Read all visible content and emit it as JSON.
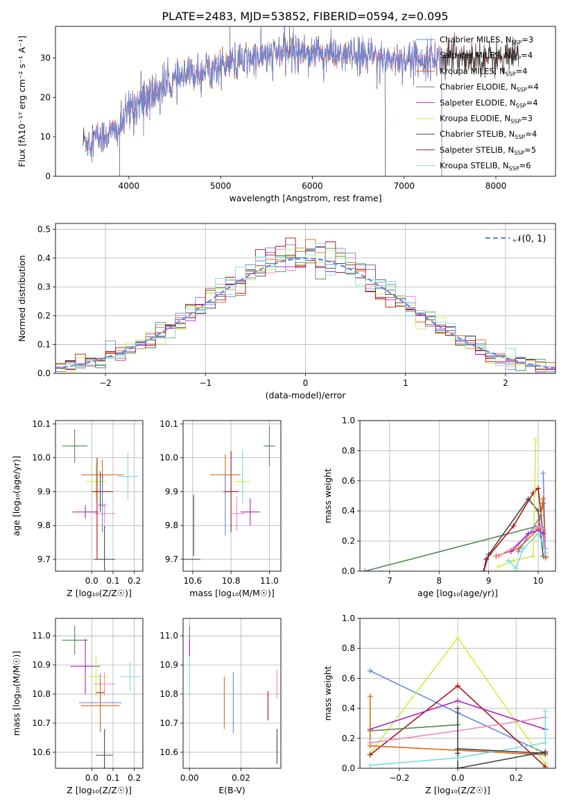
{
  "title": "PLATE=2483, MJD=53852, FIBERID=0594, z=0.095",
  "colors": {
    "Chabrier MILES": "#6688dd",
    "Salpeter MILES": "#ee88bb",
    "Kroupa MILES": "#dd6611",
    "Chabrier ELODIE": "#558855",
    "Salpeter ELODIE": "#aa22bb",
    "Kroupa ELODIE": "#ccee44",
    "Chabrier STELIB": "#444444",
    "Salpeter STELIB": "#aa1111",
    "Kroupa STELIB": "#77dddd",
    "gauss": "#6688dd"
  },
  "chart_data": [
    {
      "type": "line",
      "panel": "spectrum",
      "xlabel": "wavelength [Angstrom, rest frame]",
      "ylabel": "Flux [fλ10⁻¹⁷ erg cm⁻² s⁻¹ A⁻¹]",
      "xlim": [
        3200,
        8650
      ],
      "ylim": [
        0,
        38
      ],
      "xticks": [
        4000,
        5000,
        6000,
        7000,
        8000
      ],
      "yticks": [
        0,
        10,
        20,
        30
      ],
      "grid": false,
      "legend_position": "top-right",
      "continuum": [
        [
          3500,
          9
        ],
        [
          3700,
          10
        ],
        [
          3900,
          12
        ],
        [
          4000,
          17
        ],
        [
          4200,
          20
        ],
        [
          4400,
          23
        ],
        [
          4600,
          25
        ],
        [
          4800,
          27
        ],
        [
          5000,
          28
        ],
        [
          5200,
          29
        ],
        [
          5400,
          30
        ],
        [
          5600,
          31
        ],
        [
          5800,
          32
        ],
        [
          6000,
          31.5
        ],
        [
          6200,
          31
        ],
        [
          6400,
          30.5
        ],
        [
          6600,
          30.5
        ],
        [
          6800,
          30
        ],
        [
          7000,
          29.5
        ],
        [
          7200,
          30
        ],
        [
          7400,
          30
        ],
        [
          7600,
          30.5
        ],
        [
          7800,
          30
        ],
        [
          8000,
          30
        ],
        [
          8300,
          30
        ]
      ],
      "series": [
        {
          "name": "Chabrier MILES, N_SSP=3",
          "legend_label": "Chabrier MILES, N",
          "n_ssp": 3,
          "range": [
            3510,
            7410
          ]
        },
        {
          "name": "Salpeter MILES, N_SSP=4",
          "legend_label": "Salpeter MILES, N",
          "n_ssp": 4,
          "range": [
            3510,
            7410
          ]
        },
        {
          "name": "Kroupa MILES, N_SSP=4",
          "legend_label": "Kroupa MILES, N",
          "n_ssp": 4,
          "range": [
            3510,
            7410
          ]
        },
        {
          "name": "Chabrier ELODIE, N_SSP=4",
          "legend_label": "Chabrier ELODIE, N",
          "n_ssp": 4,
          "range": [
            3900,
            6795
          ]
        },
        {
          "name": "Salpeter ELODIE, N_SSP=4",
          "legend_label": "Salpeter ELODIE, N",
          "n_ssp": 4,
          "range": [
            3900,
            6795
          ]
        },
        {
          "name": "Kroupa ELODIE, N_SSP=3",
          "legend_label": "Kroupa ELODIE, N",
          "n_ssp": 3,
          "range": [
            3900,
            6795
          ]
        },
        {
          "name": "Chabrier STELIB, N_SSP=4",
          "legend_label": "Chabrier STELIB, N",
          "n_ssp": 4,
          "range": [
            3500,
            8250
          ]
        },
        {
          "name": "Salpeter STELIB, N_SSP=5",
          "legend_label": "Salpeter STELIB, N",
          "n_ssp": 5,
          "range": [
            3500,
            8250
          ]
        },
        {
          "name": "Kroupa STELIB, N_SSP=6",
          "legend_label": "Kroupa STELIB, N",
          "n_ssp": 6,
          "range": [
            3500,
            8250
          ]
        }
      ]
    },
    {
      "type": "line",
      "panel": "residual_histogram",
      "xlabel": "(data-model)/error",
      "ylabel": "Normed distribution",
      "xlim": [
        -2.5,
        2.5
      ],
      "ylim": [
        0,
        0.52
      ],
      "xticks": [
        -2,
        -1,
        0,
        1,
        2
      ],
      "yticks": [
        0.0,
        0.1,
        0.2,
        0.3,
        0.4,
        0.5
      ],
      "grid": true,
      "legend_position": "top-right",
      "legend_label": "𝒩(0, 1)",
      "bin_width": 0.1,
      "gaussian": {
        "mean": 0,
        "sigma": 1
      }
    },
    {
      "type": "scatter",
      "panel": "Z_vs_age",
      "xlabel": "Z [log₁₀(Z/Z☉)]",
      "ylabel": "age  [log₁₀(age/yr)]",
      "xlim": [
        -0.17,
        0.24
      ],
      "ylim": [
        9.665,
        10.11
      ],
      "xticks": [
        0.0,
        0.1,
        0.2
      ],
      "yticks": [
        9.7,
        9.8,
        9.9,
        10.0,
        10.1
      ],
      "grid": true,
      "points": [
        {
          "series": "Chabrier ELODIE",
          "x": -0.08,
          "xerr": 0.06,
          "y": 10.035,
          "yerr": 0.05
        },
        {
          "series": "Kroupa ELODIE",
          "x": 0.02,
          "xerr": 0.05,
          "y": 9.93,
          "yerr": 0.055
        },
        {
          "series": "Kroupa MILES",
          "x": 0.05,
          "xerr": 0.1,
          "y": 9.95,
          "yerr": 0.045
        },
        {
          "series": "Kroupa STELIB",
          "x": 0.17,
          "xerr": 0.05,
          "y": 9.945,
          "yerr": 0.07
        },
        {
          "series": "Salpeter STELIB",
          "x": 0.05,
          "xerr": 0.05,
          "y": 9.9,
          "yerr": 0.05
        },
        {
          "series": "Chabrier MILES",
          "x": 0.05,
          "xerr": 0.02,
          "y": 9.86,
          "yerr": 0.08
        },
        {
          "series": "Salpeter ELODIE",
          "x": -0.03,
          "xerr": 0.06,
          "y": 9.84,
          "yerr": 0.02
        },
        {
          "series": "Salpeter MILES",
          "x": 0.06,
          "xerr": 0.05,
          "y": 9.835,
          "yerr": 0.03
        },
        {
          "series": "Chabrier STELIB",
          "x": 0.06,
          "xerr": 0.05,
          "y": 9.7,
          "yerr": 0.1
        },
        {
          "series": "Chabrier STELIB",
          "x": 0.04,
          "xerr": 0.0,
          "y": 9.9,
          "yerr": 0.06
        },
        {
          "series": "Salpeter STELIB",
          "x": 0.025,
          "xerr": 0.0,
          "y": 9.85,
          "yerr": 0.15
        }
      ]
    },
    {
      "type": "scatter",
      "panel": "mass_vs_age",
      "xlabel": "mass [log₁₀(M/M☉)]",
      "ylabel": "",
      "xlim": [
        10.55,
        11.06
      ],
      "ylim": [
        9.665,
        10.11
      ],
      "xticks": [
        10.6,
        10.8,
        11.0
      ],
      "yticks": [
        9.7,
        9.8,
        9.9,
        10.0,
        10.1
      ],
      "grid": true,
      "points": [
        {
          "series": "Chabrier ELODIE",
          "x": 11.0,
          "xerr": 0.03,
          "y": 10.035,
          "yerr": 0.06
        },
        {
          "series": "Kroupa MILES",
          "x": 10.77,
          "xerr": 0.08,
          "y": 9.95,
          "yerr": 0.06
        },
        {
          "series": "Kroupa ELODIE",
          "x": 10.86,
          "xerr": 0.04,
          "y": 9.93,
          "yerr": 0.04
        },
        {
          "series": "Kroupa STELIB",
          "x": 10.86,
          "xerr": 0.0,
          "y": 9.945,
          "yerr": 0.08
        },
        {
          "series": "Salpeter STELIB",
          "x": 10.8,
          "xerr": 0.04,
          "y": 9.9,
          "yerr": 0.12
        },
        {
          "series": "Chabrier MILES",
          "x": 10.77,
          "xerr": 0.0,
          "y": 9.86,
          "yerr": 0.09
        },
        {
          "series": "Salpeter ELODIE",
          "x": 10.9,
          "xerr": 0.05,
          "y": 9.84,
          "yerr": 0.04
        },
        {
          "series": "Salpeter MILES",
          "x": 10.83,
          "xerr": 0.04,
          "y": 9.835,
          "yerr": 0.05
        },
        {
          "series": "Chabrier STELIB",
          "x": 10.59,
          "xerr": 0.05,
          "y": 9.7,
          "yerr": 0.0
        },
        {
          "series": "Chabrier STELIB",
          "x": 10.605,
          "xerr": 0.0,
          "y": 9.8,
          "yerr": 0.09
        }
      ]
    },
    {
      "type": "line",
      "panel": "age_vs_massweight",
      "xlabel": "age  [log₁₀(age/yr)]",
      "ylabel": "mass weight",
      "xlim": [
        6.4,
        10.35
      ],
      "ylim": [
        0,
        1.0
      ],
      "xticks": [
        7,
        8,
        9,
        10
      ],
      "yticks": [
        0.0,
        0.2,
        0.4,
        0.6,
        0.8,
        1.0
      ],
      "grid": true,
      "series": [
        {
          "series": "Chabrier ELODIE",
          "points": [
            [
              6.5,
              0.0
            ],
            [
              10.0,
              0.3
            ],
            [
              10.1,
              0.45
            ]
          ]
        },
        {
          "series": "Chabrier STELIB",
          "points": [
            [
              8.9,
              0.0
            ],
            [
              9.0,
              0.11
            ],
            [
              9.8,
              0.48
            ],
            [
              10.0,
              0.4
            ],
            [
              10.1,
              0.1
            ]
          ]
        },
        {
          "series": "Salpeter STELIB",
          "points": [
            [
              8.9,
              0.0
            ],
            [
              8.95,
              0.08
            ],
            [
              9.5,
              0.3
            ],
            [
              9.9,
              0.52
            ],
            [
              10.0,
              0.55
            ],
            [
              10.15,
              0.09
            ]
          ]
        },
        {
          "series": "Kroupa ELODIE",
          "points": [
            [
              9.2,
              0.03
            ],
            [
              9.5,
              0.07
            ],
            [
              9.9,
              0.1
            ],
            [
              9.95,
              0.87
            ]
          ]
        },
        {
          "series": "Chabrier MILES",
          "points": [
            [
              9.6,
              0.13
            ],
            [
              10.05,
              0.37
            ],
            [
              10.15,
              0.1
            ],
            [
              10.1,
              0.65
            ]
          ]
        },
        {
          "series": "Kroupa MILES",
          "points": [
            [
              9.15,
              0.1
            ],
            [
              9.6,
              0.15
            ],
            [
              10.0,
              0.28
            ],
            [
              10.1,
              0.48
            ],
            [
              10.15,
              0.09
            ]
          ]
        },
        {
          "series": "Salpeter MILES",
          "points": [
            [
              9.2,
              0.1
            ],
            [
              9.6,
              0.18
            ],
            [
              10.0,
              0.3
            ],
            [
              10.1,
              0.28
            ],
            [
              10.15,
              0.15
            ]
          ]
        },
        {
          "series": "Salpeter ELODIE",
          "points": [
            [
              9.45,
              0.13
            ],
            [
              9.8,
              0.25
            ],
            [
              10.0,
              0.27
            ],
            [
              10.1,
              0.25
            ]
          ]
        },
        {
          "series": "Kroupa STELIB",
          "points": [
            [
              9.4,
              0.07
            ],
            [
              9.55,
              0.02
            ],
            [
              9.7,
              0.15
            ],
            [
              10.0,
              0.25
            ],
            [
              10.1,
              0.18
            ],
            [
              10.15,
              0.12
            ]
          ]
        }
      ]
    },
    {
      "type": "scatter",
      "panel": "Z_vs_mass",
      "xlabel": "Z [log₁₀(Z/Z☉)]",
      "ylabel": "mass [log₁₀(M/M☉)]",
      "xlim": [
        -0.17,
        0.24
      ],
      "ylim": [
        10.545,
        11.06
      ],
      "xticks": [
        0.0,
        0.1,
        0.2
      ],
      "yticks": [
        10.6,
        10.7,
        10.8,
        10.9,
        11.0
      ],
      "grid": true,
      "points": [
        {
          "series": "Chabrier ELODIE",
          "x": -0.08,
          "xerr": 0.06,
          "y": 10.985,
          "yerr": 0.05
        },
        {
          "series": "Salpeter ELODIE",
          "x": -0.03,
          "xerr": 0.07,
          "y": 10.895,
          "yerr": 0.095
        },
        {
          "series": "Kroupa ELODIE",
          "x": 0.02,
          "xerr": 0.06,
          "y": 10.86,
          "yerr": 0.07
        },
        {
          "series": "Kroupa STELIB",
          "x": 0.18,
          "xerr": 0.05,
          "y": 10.86,
          "yerr": 0.05
        },
        {
          "series": "Salpeter MILES",
          "x": 0.06,
          "xerr": 0.05,
          "y": 10.835,
          "yerr": 0.04
        },
        {
          "series": "Salpeter STELIB",
          "x": 0.04,
          "xerr": 0.02,
          "y": 10.805,
          "yerr": 0.03
        },
        {
          "series": "Chabrier MILES",
          "x": 0.04,
          "xerr": 0.1,
          "y": 10.77,
          "yerr": 0.1
        },
        {
          "series": "Kroupa MILES",
          "x": 0.04,
          "xerr": 0.09,
          "y": 10.76,
          "yerr": 0.09
        },
        {
          "series": "Chabrier STELIB",
          "x": 0.06,
          "xerr": 0.04,
          "y": 10.59,
          "yerr": 0.09
        }
      ]
    },
    {
      "type": "scatter",
      "panel": "EBV_vs_mass",
      "xlabel": "E(B-V)",
      "ylabel": "",
      "xlim": [
        -0.0025,
        0.0355
      ],
      "ylim": [
        10.545,
        11.06
      ],
      "xticks": [
        0.0,
        0.02
      ],
      "yticks": [
        10.6,
        10.7,
        10.8,
        10.9,
        11.0
      ],
      "grid": true,
      "points": [
        {
          "series": "Chabrier ELODIE",
          "x": 0.0,
          "xerr": 0.0,
          "y": 10.985,
          "yerr": 0.05
        },
        {
          "series": "Salpeter ELODIE",
          "x": 0.0,
          "xerr": 0.0,
          "y": 10.96,
          "yerr": 0.03
        },
        {
          "series": "Kroupa STELIB",
          "x": 0.0,
          "xerr": 0.0,
          "y": 10.87,
          "yerr": 0.06
        },
        {
          "series": "Kroupa MILES",
          "x": 0.0135,
          "xerr": 0.0,
          "y": 10.77,
          "yerr": 0.09
        },
        {
          "series": "Chabrier MILES",
          "x": 0.017,
          "xerr": 0.0,
          "y": 10.77,
          "yerr": 0.105
        },
        {
          "series": "Salpeter STELIB",
          "x": 0.0305,
          "xerr": 0.0,
          "y": 10.76,
          "yerr": 0.05
        },
        {
          "series": "Salpeter MILES",
          "x": 0.034,
          "xerr": 0.0,
          "y": 10.835,
          "yerr": 0.05
        },
        {
          "series": "Chabrier STELIB",
          "x": 0.034,
          "xerr": 0.0,
          "y": 10.62,
          "yerr": 0.06
        }
      ]
    },
    {
      "type": "line",
      "panel": "Z_vs_massweight",
      "xlabel": "Z [log₁₀(Z/Z☉)]",
      "ylabel": "mass weight",
      "xlim": [
        -0.335,
        0.335
      ],
      "ylim": [
        0,
        1.0
      ],
      "xticks": [
        -0.2,
        0.0,
        0.2
      ],
      "yticks": [
        0.0,
        0.2,
        0.4,
        0.6,
        0.8,
        1.0
      ],
      "grid": true,
      "series": [
        {
          "series": "Chabrier MILES",
          "points": [
            [
              -0.3,
              0.65
            ],
            [
              0.0,
              0.37
            ],
            [
              0.3,
              0.1
            ]
          ]
        },
        {
          "series": "Kroupa ELODIE",
          "points": [
            [
              -0.3,
              0.1
            ],
            [
              0.0,
              0.87
            ],
            [
              0.3,
              0.03
            ]
          ]
        },
        {
          "series": "Salpeter STELIB",
          "points": [
            [
              -0.3,
              0.09
            ],
            [
              0.0,
              0.55
            ],
            [
              0.3,
              0.01
            ]
          ]
        },
        {
          "series": "Salpeter ELODIE",
          "points": [
            [
              -0.3,
              0.26
            ],
            [
              0.0,
              0.45
            ],
            [
              0.3,
              0.26
            ]
          ]
        },
        {
          "series": "Chabrier ELODIE",
          "points": [
            [
              -0.3,
              0.25
            ],
            [
              0.0,
              0.29
            ],
            [
              0.0,
              0.29
            ]
          ]
        },
        {
          "series": "Kroupa MILES",
          "points": [
            [
              -0.3,
              0.48
            ],
            [
              -0.3,
              0.15
            ],
            [
              0.0,
              0.12
            ],
            [
              0.3,
              0.09
            ]
          ]
        },
        {
          "series": "Salpeter MILES",
          "points": [
            [
              -0.3,
              0.17
            ],
            [
              0.0,
              0.25
            ],
            [
              0.3,
              0.34
            ]
          ]
        },
        {
          "series": "Chabrier STELIB",
          "points": [
            [
              0.0,
              0.0
            ],
            [
              0.0,
              0.4
            ],
            [
              0.0,
              0.0
            ],
            [
              0.3,
              0.11
            ]
          ]
        },
        {
          "series": "Kroupa STELIB",
          "points": [
            [
              -0.3,
              0.02
            ],
            [
              0.0,
              0.07
            ],
            [
              0.3,
              0.17
            ],
            [
              0.3,
              0.38
            ]
          ]
        },
        {
          "series": "Chabrier STELIB",
          "points": [
            [
              0.0,
              0.1
            ],
            [
              0.0,
              0.13
            ],
            [
              0.3,
              0.1
            ]
          ]
        }
      ]
    }
  ]
}
